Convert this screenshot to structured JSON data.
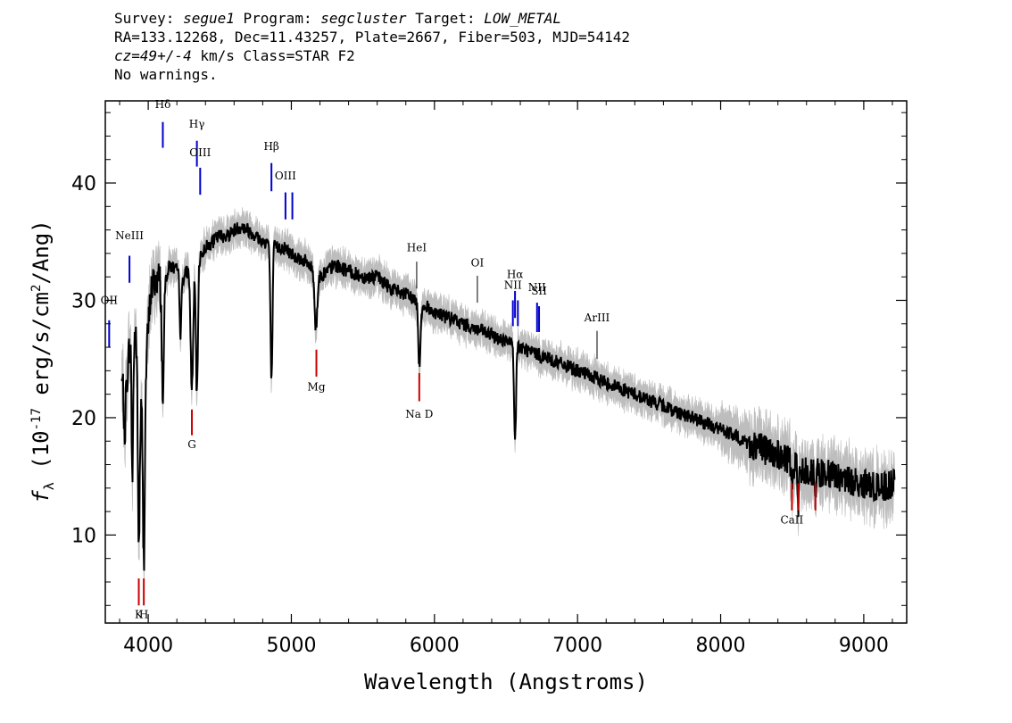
{
  "header": {
    "survey_label": "Survey:",
    "survey": "segue1",
    "program_label": "Program:",
    "program": "segcluster",
    "target_label": "Target:",
    "target": "LOW_METAL",
    "line2": "RA=133.12268, Dec=11.43257, Plate=2667, Fiber=503, MJD=54142",
    "cz": "cz=49+/-4",
    "cz_rest": " km/s Class=STAR F2",
    "line4": "No warnings."
  },
  "chart_data": {
    "type": "line",
    "xlabel": "Wavelength (Angstroms)",
    "ylabel_prefix": "f",
    "ylabel_sub": "λ",
    "ylabel_open": " (10",
    "ylabel_exp": "-17",
    "ylabel_mid": " erg/s/cm",
    "ylabel_exp2": "2",
    "ylabel_close": "/Ang)",
    "xlim": [
      3700,
      9300
    ],
    "ylim": [
      2.5,
      47
    ],
    "x_ticks": [
      4000,
      5000,
      6000,
      7000,
      8000,
      9000
    ],
    "y_ticks": [
      10,
      20,
      30,
      40
    ],
    "colors": {
      "spectrum": "#000000",
      "noise": "#bdbdbd",
      "absorption": "#cc0000",
      "emission": "#0000cc",
      "other": "#000000"
    },
    "spectrum_anchors": [
      [
        3850,
        23
      ],
      [
        3880,
        28
      ],
      [
        3920,
        27
      ],
      [
        3950,
        22
      ],
      [
        3980,
        24
      ],
      [
        4020,
        31
      ],
      [
        4060,
        32
      ],
      [
        4110,
        31.5
      ],
      [
        4150,
        33
      ],
      [
        4200,
        32.5
      ],
      [
        4250,
        32
      ],
      [
        4300,
        33
      ],
      [
        4350,
        33.5
      ],
      [
        4400,
        34.5
      ],
      [
        4450,
        35
      ],
      [
        4500,
        35.5
      ],
      [
        4550,
        35.5
      ],
      [
        4600,
        36
      ],
      [
        4650,
        36.3
      ],
      [
        4700,
        36
      ],
      [
        4750,
        35.5
      ],
      [
        4800,
        35
      ],
      [
        4850,
        35
      ],
      [
        4900,
        34.5
      ],
      [
        4950,
        34.5
      ],
      [
        5000,
        34
      ],
      [
        5100,
        33.3
      ],
      [
        5200,
        32
      ],
      [
        5300,
        33
      ],
      [
        5400,
        32.5
      ],
      [
        5500,
        32
      ],
      [
        5600,
        32
      ],
      [
        5700,
        31
      ],
      [
        5800,
        30.5
      ],
      [
        5900,
        29.8
      ],
      [
        6000,
        29
      ],
      [
        6100,
        28.5
      ],
      [
        6200,
        28
      ],
      [
        6300,
        27.5
      ],
      [
        6400,
        27
      ],
      [
        6500,
        26.5
      ],
      [
        6600,
        26
      ],
      [
        6700,
        25.5
      ],
      [
        6800,
        25
      ],
      [
        6900,
        24.5
      ],
      [
        7000,
        24
      ],
      [
        7200,
        23
      ],
      [
        7400,
        22
      ],
      [
        7600,
        21
      ],
      [
        7800,
        20
      ],
      [
        8000,
        19
      ],
      [
        8200,
        17.8
      ],
      [
        8400,
        16.8
      ],
      [
        8600,
        15.5
      ],
      [
        8800,
        15
      ],
      [
        9000,
        14.3
      ],
      [
        9100,
        14
      ],
      [
        9200,
        14.3
      ]
    ],
    "absorption_features": [
      [
        3934,
        9.3,
        7
      ],
      [
        3969,
        7.8,
        7
      ],
      [
        3889,
        15,
        6
      ],
      [
        3835,
        18,
        5
      ],
      [
        3798,
        22,
        4
      ],
      [
        4102,
        21.5,
        7
      ],
      [
        4226,
        27,
        6
      ],
      [
        4305,
        22.5,
        9
      ],
      [
        4340,
        21.8,
        7
      ],
      [
        4861,
        23,
        7
      ],
      [
        5172,
        27.5,
        9
      ],
      [
        5895,
        24.5,
        8
      ],
      [
        6563,
        18,
        7
      ],
      [
        8498,
        14,
        4
      ],
      [
        8542,
        12,
        5
      ],
      [
        8662,
        13,
        5
      ]
    ],
    "line_markers": [
      {
        "label": "K",
        "wave": 3934,
        "kind": "absorption",
        "y1": 6.3,
        "y2": 4,
        "label_y": 2.9
      },
      {
        "label": "H",
        "wave": 3969,
        "kind": "absorption",
        "y1": 6.3,
        "y2": 4,
        "label_y": 2.9
      },
      {
        "label": "G",
        "wave": 4305,
        "kind": "absorption",
        "y1": 20.7,
        "y2": 18.5,
        "label_y": 17.4
      },
      {
        "label": "Mg",
        "wave": 5175,
        "kind": "absorption",
        "y1": 25.8,
        "y2": 23.5,
        "label_y": 22.3
      },
      {
        "label": "Na D",
        "wave": 5894,
        "kind": "absorption",
        "y1": 23.8,
        "y2": 21.4,
        "label_y": 20
      },
      {
        "label": "CaII",
        "wave": 8498,
        "kind": "absorption",
        "y1": 14.4,
        "y2": 12.1,
        "label_y": 11
      },
      {
        "label": "",
        "wave": 8542,
        "kind": "absorption",
        "y1": 14.4,
        "y2": 12.1,
        "label_y": 11
      },
      {
        "label": "",
        "wave": 8662,
        "kind": "absorption",
        "y1": 14.4,
        "y2": 12.1,
        "label_y": 11
      },
      {
        "label": "NeIII",
        "wave": 3869,
        "kind": "emission",
        "y1": 31.5,
        "y2": 33.8,
        "label_y": 35.2
      },
      {
        "label": "OII",
        "wave": 3727,
        "kind": "emission",
        "y1": 26,
        "y2": 28.3,
        "label_y": 29.7
      },
      {
        "label": "Hδ",
        "wave": 4102,
        "kind": "emission",
        "y1": 43,
        "y2": 45.2,
        "label_y": 46.4
      },
      {
        "label": "Hγ",
        "wave": 4340,
        "kind": "emission",
        "y1": 41.4,
        "y2": 43.6,
        "label_y": 44.7
      },
      {
        "label": "OIII",
        "wave": 4363,
        "kind": "emission",
        "y1": 39,
        "y2": 41.3,
        "label_y": 42.3
      },
      {
        "label": "Hβ",
        "wave": 4861,
        "kind": "emission",
        "y1": 39.3,
        "y2": 41.7,
        "label_y": 42.8
      },
      {
        "label": "OIII",
        "wave": 4959,
        "kind": "emission",
        "y1": 36.9,
        "y2": 39.2,
        "label_y": 40.3
      },
      {
        "label": "",
        "wave": 5007,
        "kind": "emission",
        "y1": 36.9,
        "y2": 39.2,
        "label_y": 40.3
      },
      {
        "label": "HeI",
        "wave": 5876,
        "kind": "other",
        "y1": 31,
        "y2": 33.3,
        "label_y": 34.2
      },
      {
        "label": "OI",
        "wave": 6300,
        "kind": "other",
        "y1": 29.8,
        "y2": 32.1,
        "label_y": 32.9
      },
      {
        "label": "NII",
        "wave": 6548,
        "kind": "emission",
        "y1": 27.8,
        "y2": 30,
        "label_y": 31
      },
      {
        "label": "Hα",
        "wave": 6563,
        "kind": "emission",
        "y1": 28.5,
        "y2": 30.8,
        "label_y": 31.9
      },
      {
        "label": "",
        "wave": 6583,
        "kind": "emission",
        "y1": 27.8,
        "y2": 30,
        "label_y": 31
      },
      {
        "label": "NII",
        "wave": 6717,
        "kind": "emission",
        "y1": 27.3,
        "y2": 29.8,
        "label_y": 30.8
      },
      {
        "label": "SII",
        "wave": 6731,
        "kind": "emission",
        "y1": 27.3,
        "y2": 29.5,
        "label_y": 30.5
      },
      {
        "label": "ArIII",
        "wave": 7136,
        "kind": "other",
        "y1": 25,
        "y2": 27.4,
        "label_y": 28.2
      }
    ]
  }
}
